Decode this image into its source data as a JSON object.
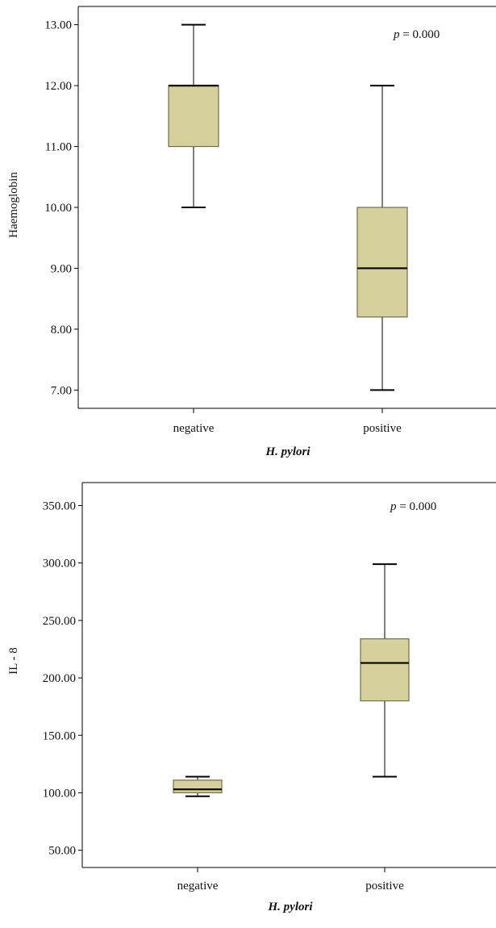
{
  "colors": {
    "box_fill": "#d6d19a",
    "box_stroke": "#6e6e50",
    "line": "#000000"
  },
  "chart_data": [
    {
      "type": "box",
      "ylabel": "Haemoglobin",
      "xlabel": "H. pylori",
      "ylim": [
        6.7,
        13.3
      ],
      "yticks": [
        "7.00",
        "8.00",
        "9.00",
        "10.00",
        "11.00",
        "12.00",
        "13.00"
      ],
      "categories": [
        "negative",
        "positive"
      ],
      "boxes": [
        {
          "category": "negative",
          "min": 10.0,
          "q1": 11.0,
          "median": 12.0,
          "q3": 12.0,
          "max": 13.0
        },
        {
          "category": "positive",
          "min": 7.0,
          "q1": 8.2,
          "median": 9.0,
          "q3": 10.0,
          "max": 12.0
        }
      ],
      "annotation": {
        "symbol": "p",
        "text": " = 0.000"
      }
    },
    {
      "type": "box",
      "ylabel": "IL - 8",
      "xlabel": "H. pylori",
      "ylim": [
        35,
        370
      ],
      "yticks": [
        "50.00",
        "100.00",
        "150.00",
        "200.00",
        "250.00",
        "300.00",
        "350.00"
      ],
      "categories": [
        "negative",
        "positive"
      ],
      "boxes": [
        {
          "category": "negative",
          "min": 97,
          "q1": 100,
          "median": 103,
          "q3": 111,
          "max": 114
        },
        {
          "category": "positive",
          "min": 114,
          "q1": 180,
          "median": 213,
          "q3": 234,
          "max": 299
        }
      ],
      "annotation": {
        "symbol": "p",
        "text": " = 0.000"
      }
    }
  ]
}
